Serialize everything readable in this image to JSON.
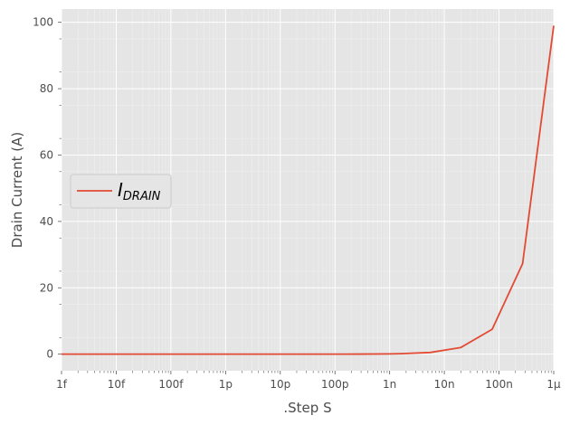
{
  "chart_data": {
    "type": "line",
    "xlabel": ".Step S",
    "ylabel": "Drain Current (A)",
    "x_scale": "log",
    "xlim": [
      1e-15,
      1e-06
    ],
    "ylim": [
      -5,
      104
    ],
    "grid": true,
    "legend_position": "center-left",
    "x_ticks": [
      {
        "value": 1e-15,
        "label": "1f"
      },
      {
        "value": 1e-14,
        "label": "10f"
      },
      {
        "value": 1e-13,
        "label": "100f"
      },
      {
        "value": 1e-12,
        "label": "1p"
      },
      {
        "value": 1e-11,
        "label": "10p"
      },
      {
        "value": 1e-10,
        "label": "100p"
      },
      {
        "value": 1e-09,
        "label": "1n"
      },
      {
        "value": 1e-08,
        "label": "10n"
      },
      {
        "value": 1e-07,
        "label": "100n"
      },
      {
        "value": 1e-06,
        "label": "1µ"
      }
    ],
    "y_ticks": [
      {
        "value": 0,
        "label": "0"
      },
      {
        "value": 20,
        "label": "20"
      },
      {
        "value": 40,
        "label": "40"
      },
      {
        "value": 60,
        "label": "60"
      },
      {
        "value": 80,
        "label": "80"
      },
      {
        "value": 100,
        "label": "100"
      }
    ],
    "series": [
      {
        "name": "I_DRAIN",
        "legend_main": "I",
        "legend_sub": "DRAIN",
        "color": "#E24A33",
        "x": [
          1e-15,
          3e-15,
          1e-14,
          3e-14,
          1e-13,
          3e-13,
          1e-12,
          3e-12,
          1e-11,
          3e-11,
          1e-10,
          3e-10,
          1e-09,
          1.6e-09,
          5.5e-09,
          2e-08,
          7.5e-08,
          2.7e-07,
          1e-06
        ],
        "y": [
          0,
          0,
          0,
          0,
          0,
          0,
          0,
          0,
          0,
          0,
          0,
          0.02,
          0.08,
          0.15,
          0.5,
          2.0,
          7.5,
          27.3,
          99.0
        ]
      }
    ]
  },
  "colors": {
    "plot_background": "#E5E5E5",
    "grid_major": "#FFFFFF",
    "line": "#E24A33",
    "text": "#4D4D4D"
  }
}
